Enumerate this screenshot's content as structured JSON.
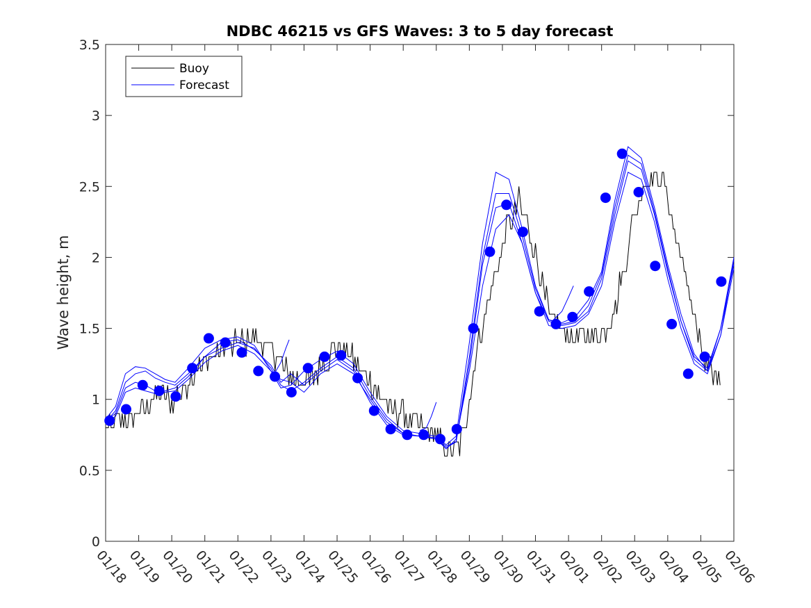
{
  "chart_data": {
    "type": "line",
    "title": "NDBC 46215 vs GFS Waves: 3 to 5 day forecast",
    "xlabel": "",
    "ylabel": "Wave height, m",
    "x_tick_labels": [
      "01/18",
      "01/19",
      "01/20",
      "01/21",
      "01/22",
      "01/23",
      "01/24",
      "01/25",
      "01/26",
      "01/27",
      "01/28",
      "01/29",
      "01/30",
      "01/31",
      "02/01",
      "02/02",
      "02/03",
      "02/04",
      "02/05",
      "02/06"
    ],
    "xlim_days": [
      0,
      19
    ],
    "y_ticks": [
      0,
      0.5,
      1,
      1.5,
      2,
      2.5,
      3,
      3.5
    ],
    "y_tick_labels": [
      "0",
      "0.5",
      "1",
      "1.5",
      "2",
      "2.5",
      "3",
      "3.5"
    ],
    "ylim": [
      0,
      3.5
    ],
    "grid": false,
    "legend": {
      "placement": "top-left",
      "entries": [
        "Buoy",
        "Forecast"
      ]
    },
    "colors": {
      "buoy": "#000000",
      "forecast": "#0000ff",
      "marker": "#0000ff"
    },
    "buoy_anchors": [
      [
        0.0,
        0.82
      ],
      [
        0.4,
        0.82
      ],
      [
        0.8,
        0.88
      ],
      [
        1.2,
        0.95
      ],
      [
        1.6,
        1.05
      ],
      [
        2.0,
        1.0
      ],
      [
        2.4,
        1.08
      ],
      [
        2.8,
        1.22
      ],
      [
        3.2,
        1.3
      ],
      [
        3.6,
        1.36
      ],
      [
        4.0,
        1.4
      ],
      [
        4.4,
        1.42
      ],
      [
        4.8,
        1.38
      ],
      [
        5.2,
        1.3
      ],
      [
        5.6,
        1.15
      ],
      [
        6.0,
        1.12
      ],
      [
        6.4,
        1.18
      ],
      [
        6.8,
        1.32
      ],
      [
        7.1,
        1.38
      ],
      [
        7.5,
        1.28
      ],
      [
        8.0,
        1.12
      ],
      [
        8.4,
        0.98
      ],
      [
        8.8,
        0.9
      ],
      [
        9.2,
        0.85
      ],
      [
        9.6,
        0.8
      ],
      [
        10.0,
        0.74
      ],
      [
        10.2,
        0.66
      ],
      [
        10.4,
        0.62
      ],
      [
        10.7,
        0.64
      ],
      [
        11.0,
        1.0
      ],
      [
        11.3,
        1.45
      ],
      [
        11.6,
        1.72
      ],
      [
        11.9,
        1.95
      ],
      [
        12.2,
        2.25
      ],
      [
        12.5,
        2.4
      ],
      [
        12.8,
        2.2
      ],
      [
        13.1,
        1.95
      ],
      [
        13.4,
        1.6
      ],
      [
        13.7,
        1.5
      ],
      [
        14.0,
        1.45
      ],
      [
        14.4,
        1.45
      ],
      [
        14.8,
        1.45
      ],
      [
        15.1,
        1.5
      ],
      [
        15.4,
        1.65
      ],
      [
        15.7,
        1.95
      ],
      [
        16.0,
        2.3
      ],
      [
        16.3,
        2.55
      ],
      [
        16.6,
        2.58
      ],
      [
        16.9,
        2.5
      ],
      [
        17.2,
        2.2
      ],
      [
        17.5,
        1.9
      ],
      [
        17.8,
        1.6
      ],
      [
        18.0,
        1.35
      ],
      [
        18.2,
        1.2
      ],
      [
        18.4,
        1.15
      ],
      [
        18.6,
        1.2
      ]
    ],
    "buoy_noise_amplitude_m": 0.08,
    "forecast_runs": [
      [
        [
          0,
          0.84
        ],
        [
          0.3,
          0.92
        ],
        [
          0.6,
          1.12
        ],
        [
          0.9,
          1.18
        ],
        [
          1.2,
          1.2
        ],
        [
          1.5,
          1.15
        ],
        [
          1.8,
          1.12
        ],
        [
          2.1,
          1.1
        ],
        [
          2.5,
          1.18
        ],
        [
          3.0,
          1.3
        ],
        [
          3.5,
          1.36
        ],
        [
          4.0,
          1.4
        ],
        [
          4.5,
          1.36
        ],
        [
          5.0,
          1.22
        ],
        [
          5.3,
          1.1
        ],
        [
          5.6,
          1.06
        ],
        [
          6.0,
          1.12
        ],
        [
          6.5,
          1.22
        ],
        [
          7.0,
          1.3
        ],
        [
          7.5,
          1.22
        ],
        [
          8.0,
          1.02
        ],
        [
          8.5,
          0.86
        ],
        [
          9.0,
          0.76
        ],
        [
          9.5,
          0.74
        ],
        [
          10.0,
          0.72
        ],
        [
          10.3,
          0.66
        ],
        [
          10.6,
          0.7
        ],
        [
          11.0,
          1.25
        ],
        [
          11.4,
          1.95
        ],
        [
          11.8,
          2.35
        ],
        [
          12.2,
          2.38
        ],
        [
          12.6,
          2.1
        ],
        [
          13.0,
          1.75
        ],
        [
          13.4,
          1.55
        ],
        [
          13.8,
          1.52
        ],
        [
          14.2,
          1.54
        ],
        [
          14.6,
          1.62
        ],
        [
          15.0,
          1.85
        ],
        [
          15.4,
          2.3
        ],
        [
          15.8,
          2.68
        ],
        [
          16.2,
          2.62
        ],
        [
          16.6,
          2.3
        ],
        [
          17.0,
          1.9
        ],
        [
          17.4,
          1.55
        ],
        [
          17.8,
          1.3
        ],
        [
          18.2,
          1.22
        ],
        [
          18.6,
          1.5
        ],
        [
          19.0,
          1.95
        ]
      ],
      [
        [
          0,
          0.86
        ],
        [
          0.3,
          0.95
        ],
        [
          0.6,
          1.18
        ],
        [
          0.9,
          1.23
        ],
        [
          1.2,
          1.22
        ],
        [
          1.5,
          1.18
        ],
        [
          1.8,
          1.14
        ],
        [
          2.1,
          1.12
        ],
        [
          2.5,
          1.22
        ],
        [
          3.0,
          1.36
        ],
        [
          3.5,
          1.42
        ],
        [
          4.0,
          1.44
        ],
        [
          4.5,
          1.38
        ],
        [
          5.0,
          1.2
        ],
        [
          5.3,
          1.08
        ],
        [
          5.6,
          1.1
        ],
        [
          6.0,
          1.2
        ],
        [
          6.5,
          1.28
        ],
        [
          7.0,
          1.34
        ],
        [
          7.5,
          1.25
        ],
        [
          8.0,
          1.05
        ],
        [
          8.5,
          0.88
        ],
        [
          9.0,
          0.78
        ],
        [
          9.5,
          0.76
        ],
        [
          10.0,
          0.74
        ],
        [
          10.3,
          0.68
        ],
        [
          10.6,
          0.74
        ],
        [
          11.0,
          1.4
        ],
        [
          11.4,
          2.1
        ],
        [
          11.8,
          2.6
        ],
        [
          12.2,
          2.55
        ],
        [
          12.6,
          2.2
        ],
        [
          13.0,
          1.8
        ],
        [
          13.4,
          1.56
        ],
        [
          13.8,
          1.54
        ],
        [
          14.2,
          1.58
        ],
        [
          14.6,
          1.7
        ],
        [
          15.0,
          1.9
        ],
        [
          15.4,
          2.4
        ],
        [
          15.8,
          2.78
        ],
        [
          16.2,
          2.7
        ],
        [
          16.6,
          2.35
        ],
        [
          17.0,
          1.95
        ],
        [
          17.4,
          1.6
        ],
        [
          17.8,
          1.32
        ],
        [
          18.2,
          1.2
        ],
        [
          18.6,
          1.45
        ],
        [
          19.0,
          1.98
        ]
      ],
      [
        [
          0,
          0.85
        ],
        [
          0.3,
          0.9
        ],
        [
          0.6,
          1.08
        ],
        [
          0.9,
          1.12
        ],
        [
          1.2,
          1.1
        ],
        [
          1.5,
          1.06
        ],
        [
          1.8,
          1.05
        ],
        [
          2.1,
          1.06
        ],
        [
          2.5,
          1.14
        ],
        [
          3.0,
          1.26
        ],
        [
          3.5,
          1.34
        ],
        [
          4.0,
          1.38
        ],
        [
          4.5,
          1.32
        ],
        [
          5.0,
          1.2
        ],
        [
          5.3,
          1.14
        ],
        [
          5.6,
          1.12
        ],
        [
          6.0,
          1.05
        ],
        [
          6.5,
          1.18
        ],
        [
          7.0,
          1.25
        ],
        [
          7.5,
          1.18
        ],
        [
          8.0,
          1.0
        ],
        [
          8.5,
          0.84
        ],
        [
          9.0,
          0.76
        ],
        [
          9.5,
          0.74
        ],
        [
          10.0,
          0.72
        ],
        [
          10.3,
          0.65
        ],
        [
          10.6,
          0.72
        ],
        [
          11.0,
          1.2
        ],
        [
          11.4,
          1.8
        ],
        [
          11.8,
          2.2
        ],
        [
          12.2,
          2.3
        ],
        [
          12.6,
          2.1
        ],
        [
          13.0,
          1.75
        ],
        [
          13.4,
          1.52
        ],
        [
          13.8,
          1.5
        ],
        [
          14.2,
          1.52
        ],
        [
          14.6,
          1.6
        ],
        [
          15.0,
          1.8
        ],
        [
          15.4,
          2.25
        ],
        [
          15.8,
          2.6
        ],
        [
          16.2,
          2.55
        ],
        [
          16.6,
          2.25
        ],
        [
          17.0,
          1.85
        ],
        [
          17.4,
          1.5
        ],
        [
          17.8,
          1.25
        ],
        [
          18.2,
          1.18
        ],
        [
          18.6,
          1.45
        ],
        [
          19.0,
          1.92
        ]
      ],
      [
        [
          0,
          0.84
        ],
        [
          0.3,
          0.88
        ],
        [
          0.6,
          1.05
        ],
        [
          0.9,
          1.08
        ],
        [
          1.2,
          1.06
        ],
        [
          1.5,
          1.04
        ],
        [
          1.8,
          1.06
        ],
        [
          2.1,
          1.08
        ],
        [
          2.5,
          1.16
        ],
        [
          3.0,
          1.3
        ],
        [
          3.5,
          1.4
        ],
        [
          4.0,
          1.42
        ],
        [
          4.5,
          1.35
        ],
        [
          5.0,
          1.24
        ],
        [
          5.3,
          1.12
        ],
        [
          5.6,
          1.18
        ],
        [
          6.0,
          1.1
        ],
        [
          6.5,
          1.2
        ],
        [
          7.0,
          1.28
        ],
        [
          7.5,
          1.2
        ],
        [
          8.0,
          0.98
        ],
        [
          8.5,
          0.82
        ],
        [
          9.0,
          0.75
        ],
        [
          9.5,
          0.74
        ],
        [
          10.0,
          0.73
        ],
        [
          10.3,
          0.67
        ],
        [
          10.6,
          0.7
        ],
        [
          11.0,
          1.3
        ],
        [
          11.4,
          2.0
        ],
        [
          11.8,
          2.45
        ],
        [
          12.2,
          2.45
        ],
        [
          12.6,
          2.15
        ],
        [
          13.0,
          1.78
        ],
        [
          13.4,
          1.56
        ],
        [
          13.8,
          1.53
        ],
        [
          14.2,
          1.55
        ],
        [
          14.6,
          1.66
        ],
        [
          15.0,
          1.88
        ],
        [
          15.4,
          2.35
        ],
        [
          15.8,
          2.72
        ],
        [
          16.2,
          2.66
        ],
        [
          16.6,
          2.32
        ],
        [
          17.0,
          1.92
        ],
        [
          17.4,
          1.55
        ],
        [
          17.8,
          1.28
        ],
        [
          18.2,
          1.2
        ],
        [
          18.6,
          1.5
        ],
        [
          19.0,
          2.0
        ]
      ]
    ],
    "forecast_segments": [
      [
        [
          5.1,
          1.18
        ],
        [
          5.3,
          1.26
        ],
        [
          5.45,
          1.36
        ],
        [
          5.55,
          1.42
        ]
      ],
      [
        [
          9.5,
          0.78
        ],
        [
          9.7,
          0.8
        ],
        [
          9.85,
          0.88
        ],
        [
          10.0,
          0.98
        ]
      ],
      [
        [
          13.5,
          1.55
        ],
        [
          13.8,
          1.62
        ],
        [
          14.0,
          1.72
        ],
        [
          14.15,
          1.8
        ]
      ]
    ],
    "forecast_markers": [
      [
        0.12,
        0.85
      ],
      [
        0.62,
        0.93
      ],
      [
        1.12,
        1.1
      ],
      [
        1.62,
        1.06
      ],
      [
        2.12,
        1.02
      ],
      [
        2.62,
        1.22
      ],
      [
        3.12,
        1.43
      ],
      [
        3.62,
        1.4
      ],
      [
        4.12,
        1.33
      ],
      [
        4.62,
        1.2
      ],
      [
        5.12,
        1.16
      ],
      [
        5.62,
        1.05
      ],
      [
        6.12,
        1.22
      ],
      [
        6.62,
        1.3
      ],
      [
        7.12,
        1.31
      ],
      [
        7.62,
        1.15
      ],
      [
        8.12,
        0.92
      ],
      [
        8.62,
        0.79
      ],
      [
        9.12,
        0.75
      ],
      [
        9.62,
        0.75
      ],
      [
        10.12,
        0.72
      ],
      [
        10.62,
        0.79
      ],
      [
        11.12,
        1.5
      ],
      [
        11.62,
        2.04
      ],
      [
        12.12,
        2.37
      ],
      [
        12.62,
        2.18
      ],
      [
        13.12,
        1.62
      ],
      [
        13.62,
        1.53
      ],
      [
        14.12,
        1.58
      ],
      [
        14.62,
        1.76
      ],
      [
        15.12,
        2.42
      ],
      [
        15.62,
        2.73
      ],
      [
        16.12,
        2.46
      ],
      [
        16.62,
        1.94
      ],
      [
        17.12,
        1.53
      ],
      [
        17.62,
        1.18
      ],
      [
        18.12,
        1.3
      ],
      [
        18.62,
        1.83
      ]
    ]
  }
}
